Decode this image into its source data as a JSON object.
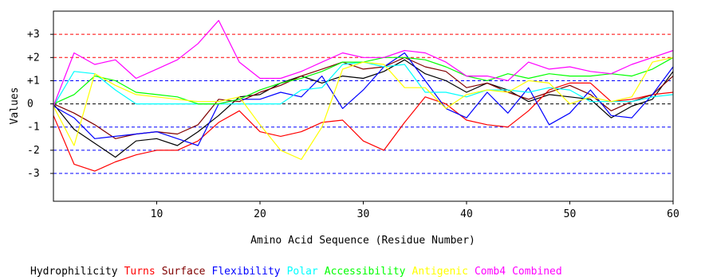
{
  "chart_data": {
    "type": "line",
    "title": "",
    "xlabel": "Amino Acid Sequence (Residue Number)",
    "ylabel": "Values",
    "xlim": [
      0,
      60
    ],
    "ylim": [
      -4.2,
      4.0
    ],
    "x_ticks": [
      10,
      20,
      30,
      40,
      50,
      60
    ],
    "y_ticks": [
      {
        "value": 3,
        "label": "+3",
        "color": "#ff0000"
      },
      {
        "value": 2,
        "label": "+2",
        "color": "#ff0000"
      },
      {
        "value": 1,
        "label": "+1",
        "color": "#0000ff"
      },
      {
        "value": 0,
        "label": "0",
        "color": "#000000"
      },
      {
        "value": -1,
        "label": "-1",
        "color": "#0000ff"
      },
      {
        "value": -2,
        "label": "-2",
        "color": "#0000ff"
      },
      {
        "value": -3,
        "label": "-3",
        "color": "#0000ff"
      }
    ],
    "legend_position": "bottom",
    "series": [
      {
        "name": "Hydrophilicity",
        "color": "#000000",
        "x": [
          0,
          2,
          4,
          6,
          8,
          10,
          12,
          14,
          16,
          18,
          20,
          22,
          24,
          26,
          28,
          30,
          32,
          34,
          36,
          38,
          40,
          42,
          44,
          46,
          48,
          50,
          52,
          54,
          56,
          58,
          60
        ],
        "values": [
          0,
          -1.1,
          -1.7,
          -2.3,
          -1.6,
          -1.5,
          -1.8,
          -1.2,
          -0.5,
          0.3,
          0.4,
          0.9,
          1.2,
          0.9,
          1.2,
          1.1,
          1.4,
          1.9,
          1.3,
          1.0,
          0.5,
          0.9,
          0.6,
          0.1,
          0.4,
          0.3,
          0.2,
          -0.6,
          -0.1,
          0.2,
          1.4
        ]
      },
      {
        "name": "Turns",
        "color": "#ff0000",
        "x": [
          0,
          2,
          4,
          6,
          8,
          10,
          12,
          14,
          16,
          18,
          20,
          22,
          24,
          26,
          28,
          30,
          32,
          34,
          36,
          38,
          40,
          42,
          44,
          46,
          48,
          50,
          52,
          54,
          56,
          58,
          60
        ],
        "values": [
          -0.5,
          -2.6,
          -2.9,
          -2.5,
          -2.2,
          -2.0,
          -2.0,
          -1.6,
          -0.8,
          -0.3,
          -1.2,
          -1.4,
          -1.2,
          -0.8,
          -0.7,
          -1.6,
          -2.0,
          -0.8,
          0.3,
          0.0,
          -0.7,
          -0.9,
          -1.0,
          -0.3,
          0.6,
          0.9,
          0.9,
          0.1,
          0.2,
          0.4,
          0.5
        ]
      },
      {
        "name": "Surface",
        "color": "#800000",
        "x": [
          0,
          2,
          4,
          6,
          8,
          10,
          12,
          14,
          16,
          18,
          20,
          22,
          24,
          26,
          28,
          30,
          32,
          34,
          36,
          38,
          40,
          42,
          44,
          46,
          48,
          50,
          52,
          54,
          56,
          58,
          60
        ],
        "values": [
          0,
          -0.4,
          -0.9,
          -1.5,
          -1.3,
          -1.2,
          -1.3,
          -0.9,
          0.2,
          0.1,
          0.5,
          0.8,
          1.2,
          1.5,
          1.8,
          1.5,
          1.6,
          2.0,
          1.6,
          1.4,
          0.7,
          0.9,
          0.5,
          0.2,
          0.5,
          0.8,
          0.4,
          -0.3,
          0.1,
          0.4,
          1.2
        ]
      },
      {
        "name": "Flexibility",
        "color": "#0000ff",
        "x": [
          0,
          2,
          4,
          6,
          8,
          10,
          12,
          14,
          16,
          18,
          20,
          22,
          24,
          26,
          28,
          30,
          32,
          34,
          36,
          38,
          40,
          42,
          44,
          46,
          48,
          50,
          52,
          54,
          56,
          58,
          60
        ],
        "values": [
          -0.1,
          -0.6,
          -1.5,
          -1.4,
          -1.3,
          -1.2,
          -1.5,
          -1.8,
          0.0,
          0.2,
          0.2,
          0.5,
          0.3,
          1.2,
          -0.2,
          0.6,
          1.6,
          2.2,
          1.0,
          -0.2,
          -0.6,
          0.5,
          -0.4,
          0.7,
          -0.9,
          -0.4,
          0.6,
          -0.5,
          -0.6,
          0.4,
          1.6
        ]
      },
      {
        "name": "Polar",
        "color": "#00ffff",
        "x": [
          0,
          2,
          4,
          6,
          8,
          10,
          12,
          14,
          16,
          18,
          20,
          22,
          24,
          26,
          28,
          30,
          32,
          34,
          36,
          38,
          40,
          42,
          44,
          46,
          48,
          50,
          52,
          54,
          56,
          58,
          60
        ],
        "values": [
          -0.1,
          1.4,
          1.3,
          0.6,
          0.0,
          0.0,
          0.0,
          0.0,
          0.0,
          0.0,
          0.0,
          0.0,
          0.6,
          0.7,
          1.7,
          1.8,
          1.6,
          1.7,
          0.5,
          0.5,
          0.3,
          0.6,
          0.6,
          0.5,
          0.7,
          0.6,
          0.1,
          0.1,
          0.1,
          0.3,
          0.4
        ]
      },
      {
        "name": "Accessibility",
        "color": "#00ff00",
        "x": [
          0,
          2,
          4,
          6,
          8,
          10,
          12,
          14,
          16,
          18,
          20,
          22,
          24,
          26,
          28,
          30,
          32,
          34,
          36,
          38,
          40,
          42,
          44,
          46,
          48,
          50,
          52,
          54,
          56,
          58,
          60
        ],
        "values": [
          0,
          0.4,
          1.2,
          1.0,
          0.5,
          0.4,
          0.3,
          0.0,
          0.0,
          0.2,
          0.6,
          0.9,
          1.1,
          1.4,
          1.8,
          1.8,
          2.0,
          2.0,
          1.9,
          1.6,
          1.2,
          1.0,
          1.3,
          1.1,
          1.3,
          1.2,
          1.2,
          1.3,
          1.2,
          1.5,
          2.0
        ]
      },
      {
        "name": "Antigenic",
        "color": "#ffff00",
        "x": [
          0,
          2,
          4,
          6,
          8,
          10,
          12,
          14,
          16,
          18,
          20,
          22,
          24,
          26,
          28,
          30,
          32,
          34,
          36,
          38,
          40,
          42,
          44,
          46,
          48,
          50,
          52,
          54,
          56,
          58,
          60
        ],
        "values": [
          -0.1,
          -1.8,
          1.3,
          0.8,
          0.4,
          0.3,
          0.2,
          0.1,
          0.1,
          0.3,
          -0.9,
          -2.0,
          -2.4,
          -1.0,
          1.5,
          1.8,
          1.7,
          0.7,
          0.7,
          -0.2,
          0.4,
          0.6,
          0.5,
          1.0,
          0.9,
          0.0,
          0.3,
          0.1,
          0.3,
          1.8,
          2.0
        ]
      },
      {
        "name": "Comb4",
        "color": "#ff00ff",
        "x": [
          0,
          2,
          4,
          6,
          8,
          10,
          12,
          14,
          16,
          18,
          20,
          22,
          24,
          26,
          28,
          30,
          32,
          34,
          36,
          38,
          40,
          42,
          44,
          46,
          48,
          50,
          52,
          54,
          56,
          58,
          60
        ],
        "values": [
          -0.1,
          2.2,
          1.7,
          1.9,
          1.1,
          1.5,
          1.9,
          2.6,
          3.6,
          1.8,
          1.1,
          1.1,
          1.4,
          1.8,
          2.2,
          2.0,
          2.0,
          2.3,
          2.2,
          1.8,
          1.2,
          1.2,
          1.0,
          1.8,
          1.5,
          1.6,
          1.4,
          1.3,
          1.7,
          2.0,
          2.3
        ]
      },
      {
        "name": "Combined",
        "color": "#ff00ff",
        "x": [],
        "values": []
      }
    ]
  }
}
